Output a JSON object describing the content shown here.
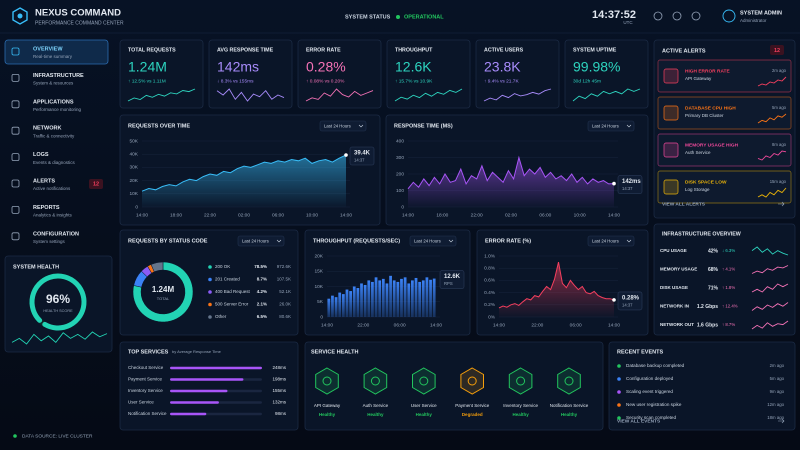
{
  "header": {
    "title": "NEXUS COMMAND",
    "subtitle": "PERFORMANCE COMMAND CENTER",
    "status_label": "SYSTEM STATUS",
    "status": "OPERATIONAL",
    "time": "14:37:52",
    "timezone": "UTC",
    "user": "SYSTEM ADMIN",
    "role": "Administrator"
  },
  "sidebar": {
    "items": [
      {
        "label": "OVERVIEW",
        "sub": "Real-time summary"
      },
      {
        "label": "INFRASTRUCTURE",
        "sub": "System & resources"
      },
      {
        "label": "APPLICATIONS",
        "sub": "Performance monitoring"
      },
      {
        "label": "NETWORK",
        "sub": "Traffic & connectivity"
      },
      {
        "label": "LOGS",
        "sub": "Events & diagnostics"
      },
      {
        "label": "ALERTS",
        "sub": "Active notifications",
        "badge": 12
      },
      {
        "label": "REPORTS",
        "sub": "Analytics & insights"
      },
      {
        "label": "CONFIGURATION",
        "sub": "System settings"
      }
    ],
    "health": {
      "title": "SYSTEM HEALTH",
      "score": 96,
      "score_label": "96%",
      "caption": "HEALTH SCORE",
      "trend": [
        50,
        55,
        48,
        60,
        52,
        58,
        50,
        62,
        55,
        60,
        54,
        63,
        57,
        61
      ]
    },
    "footer": "DATA SOURCE: LIVE CLUSTER"
  },
  "kpis": [
    {
      "title": "TOTAL REQUESTS",
      "value": "1.24M",
      "change": "↑ 12.5% vs 1.11M",
      "color": "#2dd4bf",
      "trend": [
        20,
        28,
        24,
        35,
        30,
        38,
        33,
        42,
        39,
        48,
        45,
        52
      ]
    },
    {
      "title": "AVG RESPONSE TIME",
      "value": "142ms",
      "change": "↓ 8.3% vs 155ms",
      "color": "#a78bfa",
      "trend": [
        40,
        35,
        42,
        30,
        38,
        28,
        36,
        33,
        40,
        30,
        35,
        32
      ]
    },
    {
      "title": "ERROR RATE",
      "value": "0.28%",
      "change": "↑ 0.08% vs 0.20%",
      "color": "#f472b6",
      "trend": [
        20,
        24,
        22,
        30,
        26,
        35,
        28,
        25,
        32,
        27,
        30,
        33
      ]
    },
    {
      "title": "THROUGHPUT",
      "value": "12.6K",
      "change": "↑ 15.7% vs 10.9K",
      "color": "#2dd4bf",
      "trend": [
        22,
        30,
        26,
        34,
        29,
        38,
        32,
        40,
        36,
        44,
        40,
        47
      ]
    },
    {
      "title": "ACTIVE USERS",
      "value": "23.8K",
      "change": "↑ 9.4% vs 21.7K",
      "color": "#a78bfa",
      "trend": [
        25,
        30,
        27,
        35,
        31,
        38,
        34,
        36,
        40,
        37,
        43,
        46
      ]
    },
    {
      "title": "SYSTEM UPTIME",
      "value": "99.98%",
      "change": "30d 12h 45m",
      "color": "#2dd4bf",
      "trend": [
        40,
        42,
        41,
        43,
        42,
        44,
        43,
        44,
        43,
        45,
        44,
        45
      ]
    }
  ],
  "chart_data": [
    {
      "type": "area",
      "title": "REQUESTS OVER TIME",
      "range": "Last 24 Hours",
      "color": "#38bdf8",
      "xticks": [
        "14:00",
        "18:00",
        "22:00",
        "02:00",
        "06:00",
        "10:00",
        "14:00"
      ],
      "ylim": [
        0,
        50000
      ],
      "yticks": [
        0,
        {
          "value": 10000,
          "label": "10K"
        },
        {
          "value": 20000,
          "label": "20K"
        },
        {
          "value": 30000,
          "label": "30K"
        },
        {
          "value": 40000,
          "label": "40K"
        },
        {
          "value": 50000,
          "label": "50K"
        }
      ],
      "values": [
        12000,
        14000,
        13000,
        15500,
        17000,
        16000,
        19000,
        21000,
        20000,
        23000,
        25000,
        24000,
        27000,
        26000,
        29000,
        31000,
        30000,
        32000,
        34000,
        33000,
        35000,
        34000,
        36000,
        35000,
        37000,
        33000,
        35000,
        36000,
        34000,
        37000,
        39400
      ],
      "callout": {
        "value": "39.4K",
        "sub": "14:37"
      }
    },
    {
      "type": "area",
      "title": "RESPONSE TIME (MS)",
      "range": "Last 24 Hours",
      "color": "#a855f7",
      "xticks": [
        "14:00",
        "18:00",
        "22:00",
        "02:00",
        "06:00",
        "10:00",
        "14:00"
      ],
      "ylim": [
        0,
        400
      ],
      "yticks": [
        0,
        100,
        200,
        300,
        400
      ],
      "values": [
        110,
        150,
        120,
        170,
        130,
        180,
        140,
        200,
        150,
        160,
        230,
        140,
        190,
        170,
        250,
        160,
        210,
        180,
        150,
        220,
        170,
        300,
        190,
        230,
        200,
        240,
        180,
        210,
        170,
        190,
        160,
        200,
        150,
        180,
        140,
        170,
        150,
        160,
        140,
        142
      ],
      "callout": {
        "value": "142ms",
        "sub": "14:37"
      }
    },
    {
      "type": "donut",
      "title": "REQUESTS BY STATUS CODE",
      "range": "Last 24 Hours",
      "center": "1.24M",
      "center_sub": "TOTAL",
      "categories": [
        "200 OK",
        "201 Created",
        "400 Bad Request",
        "500 Server Error",
        "Other"
      ],
      "values": [
        78.5,
        8.7,
        4.2,
        2.1,
        6.5
      ],
      "value_labels": [
        "78.5%",
        "8.7%",
        "4.2%",
        "2.1%",
        "6.5%"
      ],
      "counts": [
        "972.6K",
        "107.5K",
        "52.1K",
        "26.0K",
        "80.6K"
      ],
      "colors": [
        "#22d3b4",
        "#3b82f6",
        "#8b5cf6",
        "#f97316",
        "#64748b"
      ]
    },
    {
      "type": "bar",
      "title": "THROUGHPUT (REQUESTS/SEC)",
      "range": "Last 24 Hours",
      "color": "#3b82f6",
      "xticks": [
        "14:00",
        "22:00",
        "06:00",
        "14:00"
      ],
      "ylim": [
        0,
        20000
      ],
      "yticks": [
        0,
        {
          "value": 5000,
          "label": "5K"
        },
        {
          "value": 10000,
          "label": "10K"
        },
        {
          "value": 15000,
          "label": "15K"
        },
        {
          "value": 20000,
          "label": "20K"
        }
      ],
      "values": [
        6000,
        7000,
        6500,
        8000,
        7500,
        9000,
        8500,
        10000,
        9500,
        11000,
        10500,
        12000,
        11500,
        13000,
        12000,
        12500,
        11000,
        13500,
        12000,
        11500,
        12500,
        13000,
        11000,
        12000,
        12800,
        11500,
        12000,
        13000,
        12200,
        12600
      ],
      "callout": {
        "value": "12.6K",
        "sub": "RPS"
      }
    },
    {
      "type": "area",
      "title": "ERROR RATE (%)",
      "range": "Last 24 Hours",
      "color": "#f43f5e",
      "xticks": [
        "14:00",
        "22:00",
        "06:00",
        "14:00"
      ],
      "ylim": [
        0,
        1
      ],
      "yticks": [
        {
          "value": 0,
          "label": "0%"
        },
        {
          "value": 0.2,
          "label": "0.2%"
        },
        {
          "value": 0.4,
          "label": "0.4%"
        },
        {
          "value": 0.6,
          "label": "0.6%"
        },
        {
          "value": 0.8,
          "label": "0.8%"
        },
        {
          "value": 1,
          "label": "1.0%"
        }
      ],
      "values": [
        0.15,
        0.18,
        0.16,
        0.2,
        0.22,
        0.19,
        0.25,
        0.3,
        0.28,
        0.35,
        0.33,
        0.42,
        0.5,
        0.45,
        0.62,
        0.9,
        0.55,
        0.48,
        0.6,
        0.52,
        0.45,
        0.5,
        0.4,
        0.38,
        0.42,
        0.35,
        0.32,
        0.3,
        0.3,
        0.28
      ],
      "callout": {
        "value": "0.28%",
        "sub": "14:37"
      }
    }
  ],
  "alerts": {
    "title": "ACTIVE ALERTS",
    "count": 12,
    "link": "VIEW ALL ALERTS",
    "items": [
      {
        "title": "HIGH ERROR RATE",
        "source": "API Gateway",
        "time": "2m ago",
        "color": "#f43f5e",
        "trend": [
          20,
          24,
          22,
          28,
          26,
          32,
          30,
          38
        ]
      },
      {
        "title": "DATABASE CPU HIGH",
        "source": "Primary DB Cluster",
        "time": "5m ago",
        "color": "#f97316",
        "trend": [
          22,
          26,
          24,
          30,
          27,
          33,
          31,
          36
        ]
      },
      {
        "title": "MEMORY USAGE HIGH",
        "source": "Auth Service",
        "time": "8m ago",
        "color": "#ec4899",
        "trend": [
          25,
          23,
          28,
          26,
          31,
          29,
          34,
          33
        ]
      },
      {
        "title": "DISK SPACE LOW",
        "source": "Log Storage",
        "time": "15m ago",
        "color": "#eab308",
        "trend": [
          30,
          31,
          30,
          32,
          31,
          33,
          32,
          34
        ]
      }
    ]
  },
  "infrastructure": {
    "title": "INFRASTRUCTURE OVERVIEW",
    "items": [
      {
        "label": "CPU USAGE",
        "value": "42%",
        "change": "↓ 6.3%",
        "trend": [
          30,
          34,
          28,
          32,
          26,
          30,
          27,
          25
        ]
      },
      {
        "label": "MEMORY USAGE",
        "value": "68%",
        "change": "↑ 4.1%",
        "trend": [
          24,
          27,
          25,
          30,
          28,
          32,
          31,
          34
        ]
      },
      {
        "label": "DISK USAGE",
        "value": "71%",
        "change": "↑ 1.8%",
        "trend": [
          28,
          29,
          28,
          30,
          29,
          31,
          30,
          31
        ]
      },
      {
        "label": "NETWORK IN",
        "value": "1.2 Gbps",
        "change": "↑ 12.4%",
        "trend": [
          22,
          28,
          24,
          31,
          27,
          33,
          29,
          35
        ]
      },
      {
        "label": "NETWORK OUT",
        "value": "1.6 Gbps",
        "change": "↑ 8.7%",
        "trend": [
          25,
          29,
          26,
          32,
          28,
          31,
          30,
          34
        ]
      }
    ]
  },
  "top_services": {
    "title": "TOP SERVICES",
    "subtitle": "by Average Response Time",
    "names": [
      "Checkout Service",
      "Payment Service",
      "Inventory Service",
      "User Service",
      "Notification Service"
    ],
    "values": [
      248,
      198,
      155,
      132,
      98
    ],
    "value_labels": [
      "248ms",
      "198ms",
      "155ms",
      "132ms",
      "98ms"
    ]
  },
  "service_health": {
    "title": "SERVICE HEALTH",
    "items": [
      {
        "name": "API Gateway",
        "status": "Healthy"
      },
      {
        "name": "Auth Service",
        "status": "Healthy"
      },
      {
        "name": "User Service",
        "status": "Healthy"
      },
      {
        "name": "Payment Service",
        "status": "Degraded"
      },
      {
        "name": "Inventory Service",
        "status": "Healthy"
      },
      {
        "name": "Notification Service",
        "status": "Healthy"
      }
    ]
  },
  "events": {
    "title": "RECENT EVENTS",
    "link": "VIEW ALL EVENTS",
    "items": [
      {
        "text": "Database backup completed",
        "time": "2m ago",
        "color": "#22c55e"
      },
      {
        "text": "Configuration deployed",
        "time": "5m ago",
        "color": "#3b82f6"
      },
      {
        "text": "Scaling event triggered",
        "time": "9m ago",
        "color": "#a855f7"
      },
      {
        "text": "New user registration spike",
        "time": "12m ago",
        "color": "#f97316"
      },
      {
        "text": "Security scan completed",
        "time": "18m ago",
        "color": "#22c55e"
      }
    ]
  }
}
